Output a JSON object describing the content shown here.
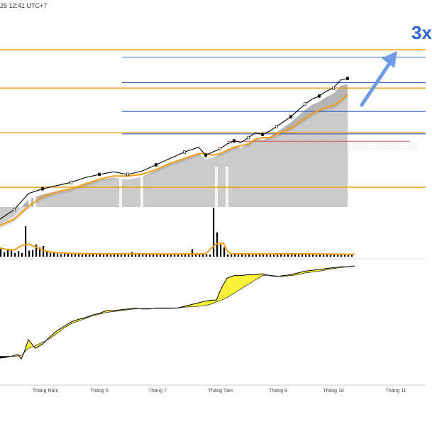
{
  "header": {
    "timestamp": "25 12:41 UTC+7"
  },
  "annotation": {
    "label": "3x",
    "color": "#2a62d8",
    "arrow_color": "#6f9be6"
  },
  "colors": {
    "orange": "#f39c12",
    "blue": "#2f63c8",
    "red": "#d9534f",
    "fill_yellow": "#fdf23a",
    "fill_black": "#000000",
    "area_gray": "#a8a8a8",
    "candle_up": "#ffffff",
    "candle_down": "#000000"
  },
  "chart_data": {
    "type": "line",
    "title": "",
    "x_ticks": [
      "Tháng Năm",
      "Tháng 6",
      "Tháng 7",
      "Tháng Tám",
      "Tháng 9",
      "Tháng 10",
      "Tháng 11"
    ],
    "price_panel": {
      "orange_levels": [
        100,
        88,
        74,
        57
      ],
      "blue_levels": [
        99,
        91,
        82,
        75
      ],
      "red_level": 74,
      "price_path": [
        [
          0,
          47
        ],
        [
          4,
          50
        ],
        [
          8,
          55
        ],
        [
          12,
          56.5
        ],
        [
          16,
          57.5
        ],
        [
          20,
          58.5
        ],
        [
          24,
          60
        ],
        [
          28,
          61
        ],
        [
          32,
          61.8
        ],
        [
          36,
          61
        ],
        [
          40,
          62
        ],
        [
          44,
          64
        ],
        [
          48,
          66
        ],
        [
          52,
          68
        ],
        [
          56,
          69.5
        ],
        [
          58,
          67
        ],
        [
          60,
          68
        ],
        [
          62,
          69
        ],
        [
          64,
          70.5
        ],
        [
          66,
          71.5
        ],
        [
          68,
          71
        ],
        [
          70,
          72.5
        ],
        [
          72,
          74
        ],
        [
          74,
          73.5
        ],
        [
          76,
          74.5
        ],
        [
          78,
          76
        ],
        [
          80,
          77.5
        ],
        [
          82,
          79
        ],
        [
          84,
          81
        ],
        [
          86,
          83
        ],
        [
          88,
          84.5
        ],
        [
          90,
          85.5
        ],
        [
          92,
          87
        ],
        [
          94,
          88
        ],
        [
          96,
          90.5
        ],
        [
          98,
          91
        ]
      ],
      "ma_path": [
        [
          0,
          45
        ],
        [
          4,
          47
        ],
        [
          8,
          51
        ],
        [
          12,
          54
        ],
        [
          16,
          55.5
        ],
        [
          20,
          56.5
        ],
        [
          24,
          58
        ],
        [
          28,
          59.5
        ],
        [
          32,
          60.5
        ],
        [
          36,
          60.5
        ],
        [
          40,
          61
        ],
        [
          44,
          62.5
        ],
        [
          48,
          64.5
        ],
        [
          52,
          66
        ],
        [
          56,
          67.5
        ],
        [
          58,
          67.5
        ],
        [
          60,
          67
        ],
        [
          62,
          67.5
        ],
        [
          64,
          68.5
        ],
        [
          66,
          69.5
        ],
        [
          68,
          70
        ],
        [
          70,
          70.5
        ],
        [
          72,
          72
        ],
        [
          74,
          72.5
        ],
        [
          76,
          72.5
        ],
        [
          78,
          73.5
        ],
        [
          80,
          74.5
        ],
        [
          82,
          75.5
        ],
        [
          84,
          77
        ],
        [
          86,
          78.5
        ],
        [
          88,
          80
        ],
        [
          90,
          81
        ],
        [
          92,
          82
        ],
        [
          94,
          82.5
        ],
        [
          96,
          84
        ],
        [
          98,
          86
        ]
      ]
    },
    "volume_panel": {
      "volumes": [
        3,
        1.5,
        2.5,
        2,
        1.2,
        1.8,
        1.2,
        10,
        2,
        2.2,
        4,
        3,
        3.5,
        2,
        1.2,
        1.5,
        1,
        0.8,
        1.1,
        0.9,
        1.2,
        0.8,
        1,
        0.8,
        0.9,
        0.8,
        1,
        0.8,
        1.2,
        0.7,
        0.8,
        0.7,
        0.9,
        1.2,
        0.8,
        0.9,
        0.7,
        1.5,
        0.8,
        0.9,
        1,
        0.8,
        0.9,
        0.7,
        0.8,
        0.9,
        0.7,
        0.8,
        0.6,
        0.7,
        0.8,
        0.9,
        1,
        0.8,
        2.5,
        0.8,
        0.7,
        0.9,
        0.8,
        0.7,
        16,
        8,
        4,
        3,
        0.8,
        0.7,
        0.9,
        0.8,
        1,
        0.7,
        0.8,
        0.9,
        0.6,
        0.8,
        0.9,
        0.7,
        0.8,
        0.6,
        0.7,
        0.8,
        1,
        0.9,
        1.2,
        0.8,
        1.1,
        0.9,
        0.7,
        0.8,
        0.9,
        0.6,
        0.7,
        1,
        0.8,
        0.7,
        0.9,
        0.8,
        0.7,
        0.8,
        0.9,
        0.7
      ],
      "volume_ma": [
        [
          0,
          2.8
        ],
        [
          2,
          2.4
        ],
        [
          4,
          2.2
        ],
        [
          6,
          3.6
        ],
        [
          8,
          4.2
        ],
        [
          10,
          3.2
        ],
        [
          12,
          2.2
        ],
        [
          14,
          1.6
        ],
        [
          16,
          1.3
        ],
        [
          18,
          1.2
        ],
        [
          20,
          1.1
        ],
        [
          24,
          1
        ],
        [
          28,
          0.95
        ],
        [
          32,
          0.95
        ],
        [
          36,
          1
        ],
        [
          40,
          0.95
        ],
        [
          44,
          0.9
        ],
        [
          48,
          0.85
        ],
        [
          52,
          0.9
        ],
        [
          56,
          0.9
        ],
        [
          58,
          1
        ],
        [
          60,
          3.2
        ],
        [
          61,
          4.2
        ],
        [
          63,
          4.4
        ],
        [
          64,
          2
        ],
        [
          65,
          1
        ],
        [
          68,
          0.95
        ],
        [
          72,
          0.9
        ],
        [
          76,
          0.9
        ],
        [
          80,
          0.95
        ],
        [
          84,
          0.95
        ],
        [
          88,
          0.9
        ],
        [
          92,
          0.85
        ],
        [
          96,
          0.8
        ],
        [
          100,
          0.8
        ]
      ]
    },
    "oscillator_panel": {
      "series": [
        [
          0,
          -6
        ],
        [
          2,
          -5
        ],
        [
          4,
          -3
        ],
        [
          5,
          -2
        ],
        [
          6,
          -7
        ],
        [
          7,
          3
        ],
        [
          8,
          15
        ],
        [
          10,
          5
        ],
        [
          12,
          10
        ],
        [
          14,
          18
        ],
        [
          16,
          25
        ],
        [
          18,
          30
        ],
        [
          20,
          35
        ],
        [
          22,
          38
        ],
        [
          24,
          40
        ],
        [
          26,
          43
        ],
        [
          28,
          45
        ],
        [
          30,
          48
        ],
        [
          32,
          48
        ],
        [
          34,
          49
        ],
        [
          36,
          50
        ],
        [
          38,
          51
        ],
        [
          40,
          50
        ],
        [
          42,
          50
        ],
        [
          44,
          51
        ],
        [
          46,
          51
        ],
        [
          48,
          51
        ],
        [
          50,
          51
        ],
        [
          52,
          53
        ],
        [
          54,
          55
        ],
        [
          56,
          57
        ],
        [
          58,
          59
        ],
        [
          60,
          60
        ],
        [
          61,
          60
        ],
        [
          62,
          70
        ],
        [
          63,
          78
        ],
        [
          64,
          85
        ],
        [
          66,
          88
        ],
        [
          68,
          88
        ],
        [
          70,
          89
        ],
        [
          72,
          89
        ],
        [
          74,
          90
        ],
        [
          76,
          88
        ],
        [
          78,
          87
        ],
        [
          80,
          88
        ],
        [
          82,
          89
        ],
        [
          84,
          91
        ],
        [
          86,
          93
        ],
        [
          88,
          94
        ],
        [
          90,
          95
        ],
        [
          92,
          96
        ],
        [
          94,
          97
        ],
        [
          96,
          98
        ],
        [
          98,
          98
        ],
        [
          100,
          99
        ]
      ],
      "signal": [
        [
          0,
          -4
        ],
        [
          4,
          -4
        ],
        [
          6,
          -3
        ],
        [
          8,
          5
        ],
        [
          10,
          8
        ],
        [
          12,
          12
        ],
        [
          14,
          16
        ],
        [
          16,
          22
        ],
        [
          18,
          28
        ],
        [
          20,
          33
        ],
        [
          22,
          36
        ],
        [
          24,
          39
        ],
        [
          26,
          42
        ],
        [
          28,
          44
        ],
        [
          30,
          46
        ],
        [
          32,
          47
        ],
        [
          34,
          48
        ],
        [
          36,
          49
        ],
        [
          38,
          50
        ],
        [
          40,
          50.5
        ],
        [
          44,
          50.5
        ],
        [
          48,
          50.5
        ],
        [
          50,
          51
        ],
        [
          52,
          52
        ],
        [
          56,
          53
        ],
        [
          58,
          54
        ],
        [
          60,
          56
        ],
        [
          61,
          58
        ],
        [
          62,
          59
        ],
        [
          64,
          63
        ],
        [
          66,
          68
        ],
        [
          68,
          73
        ],
        [
          70,
          78
        ],
        [
          72,
          83
        ],
        [
          74,
          88
        ],
        [
          76,
          88.5
        ],
        [
          78,
          87.5
        ],
        [
          80,
          87
        ],
        [
          82,
          88
        ],
        [
          84,
          89
        ],
        [
          86,
          91
        ],
        [
          88,
          92
        ],
        [
          90,
          93
        ],
        [
          92,
          94.5
        ],
        [
          94,
          96
        ],
        [
          96,
          97
        ],
        [
          98,
          98
        ],
        [
          100,
          99
        ]
      ]
    }
  }
}
